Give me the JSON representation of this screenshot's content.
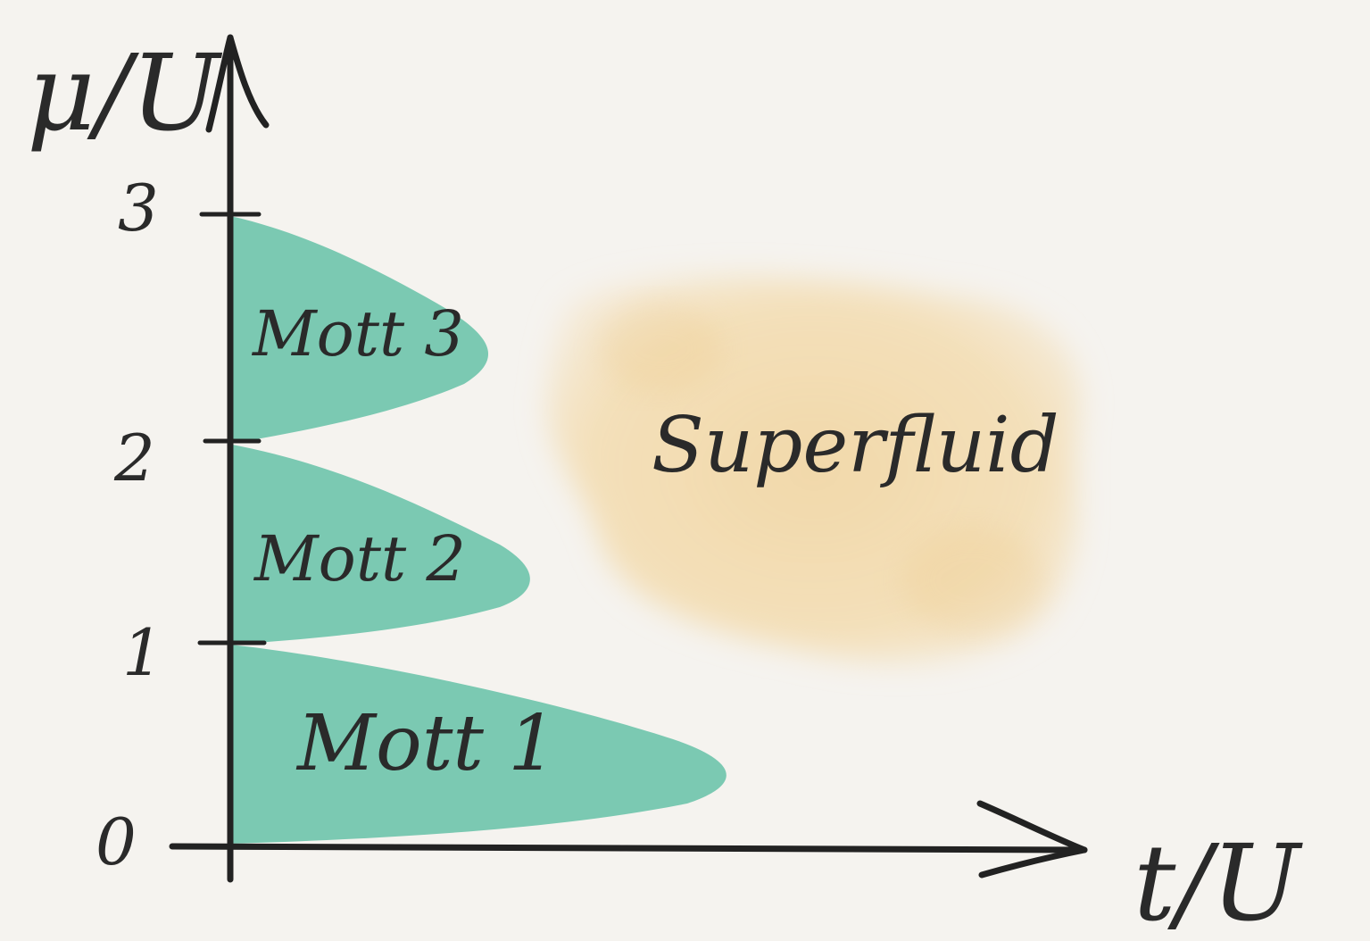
{
  "diagram": {
    "y_axis_label": "μ/U",
    "x_axis_label": "t/U",
    "ticks": [
      "0",
      "1",
      "2",
      "3"
    ],
    "regions": {
      "mott1": "Mott 1",
      "mott2": "Mott 2",
      "mott3": "Mott 3",
      "superfluid": "Superfluid"
    },
    "colors": {
      "mott": "#7bc9b2",
      "superfluid": "#f1d7a6",
      "ink": "#222222",
      "background": "#f5f3ef"
    }
  }
}
